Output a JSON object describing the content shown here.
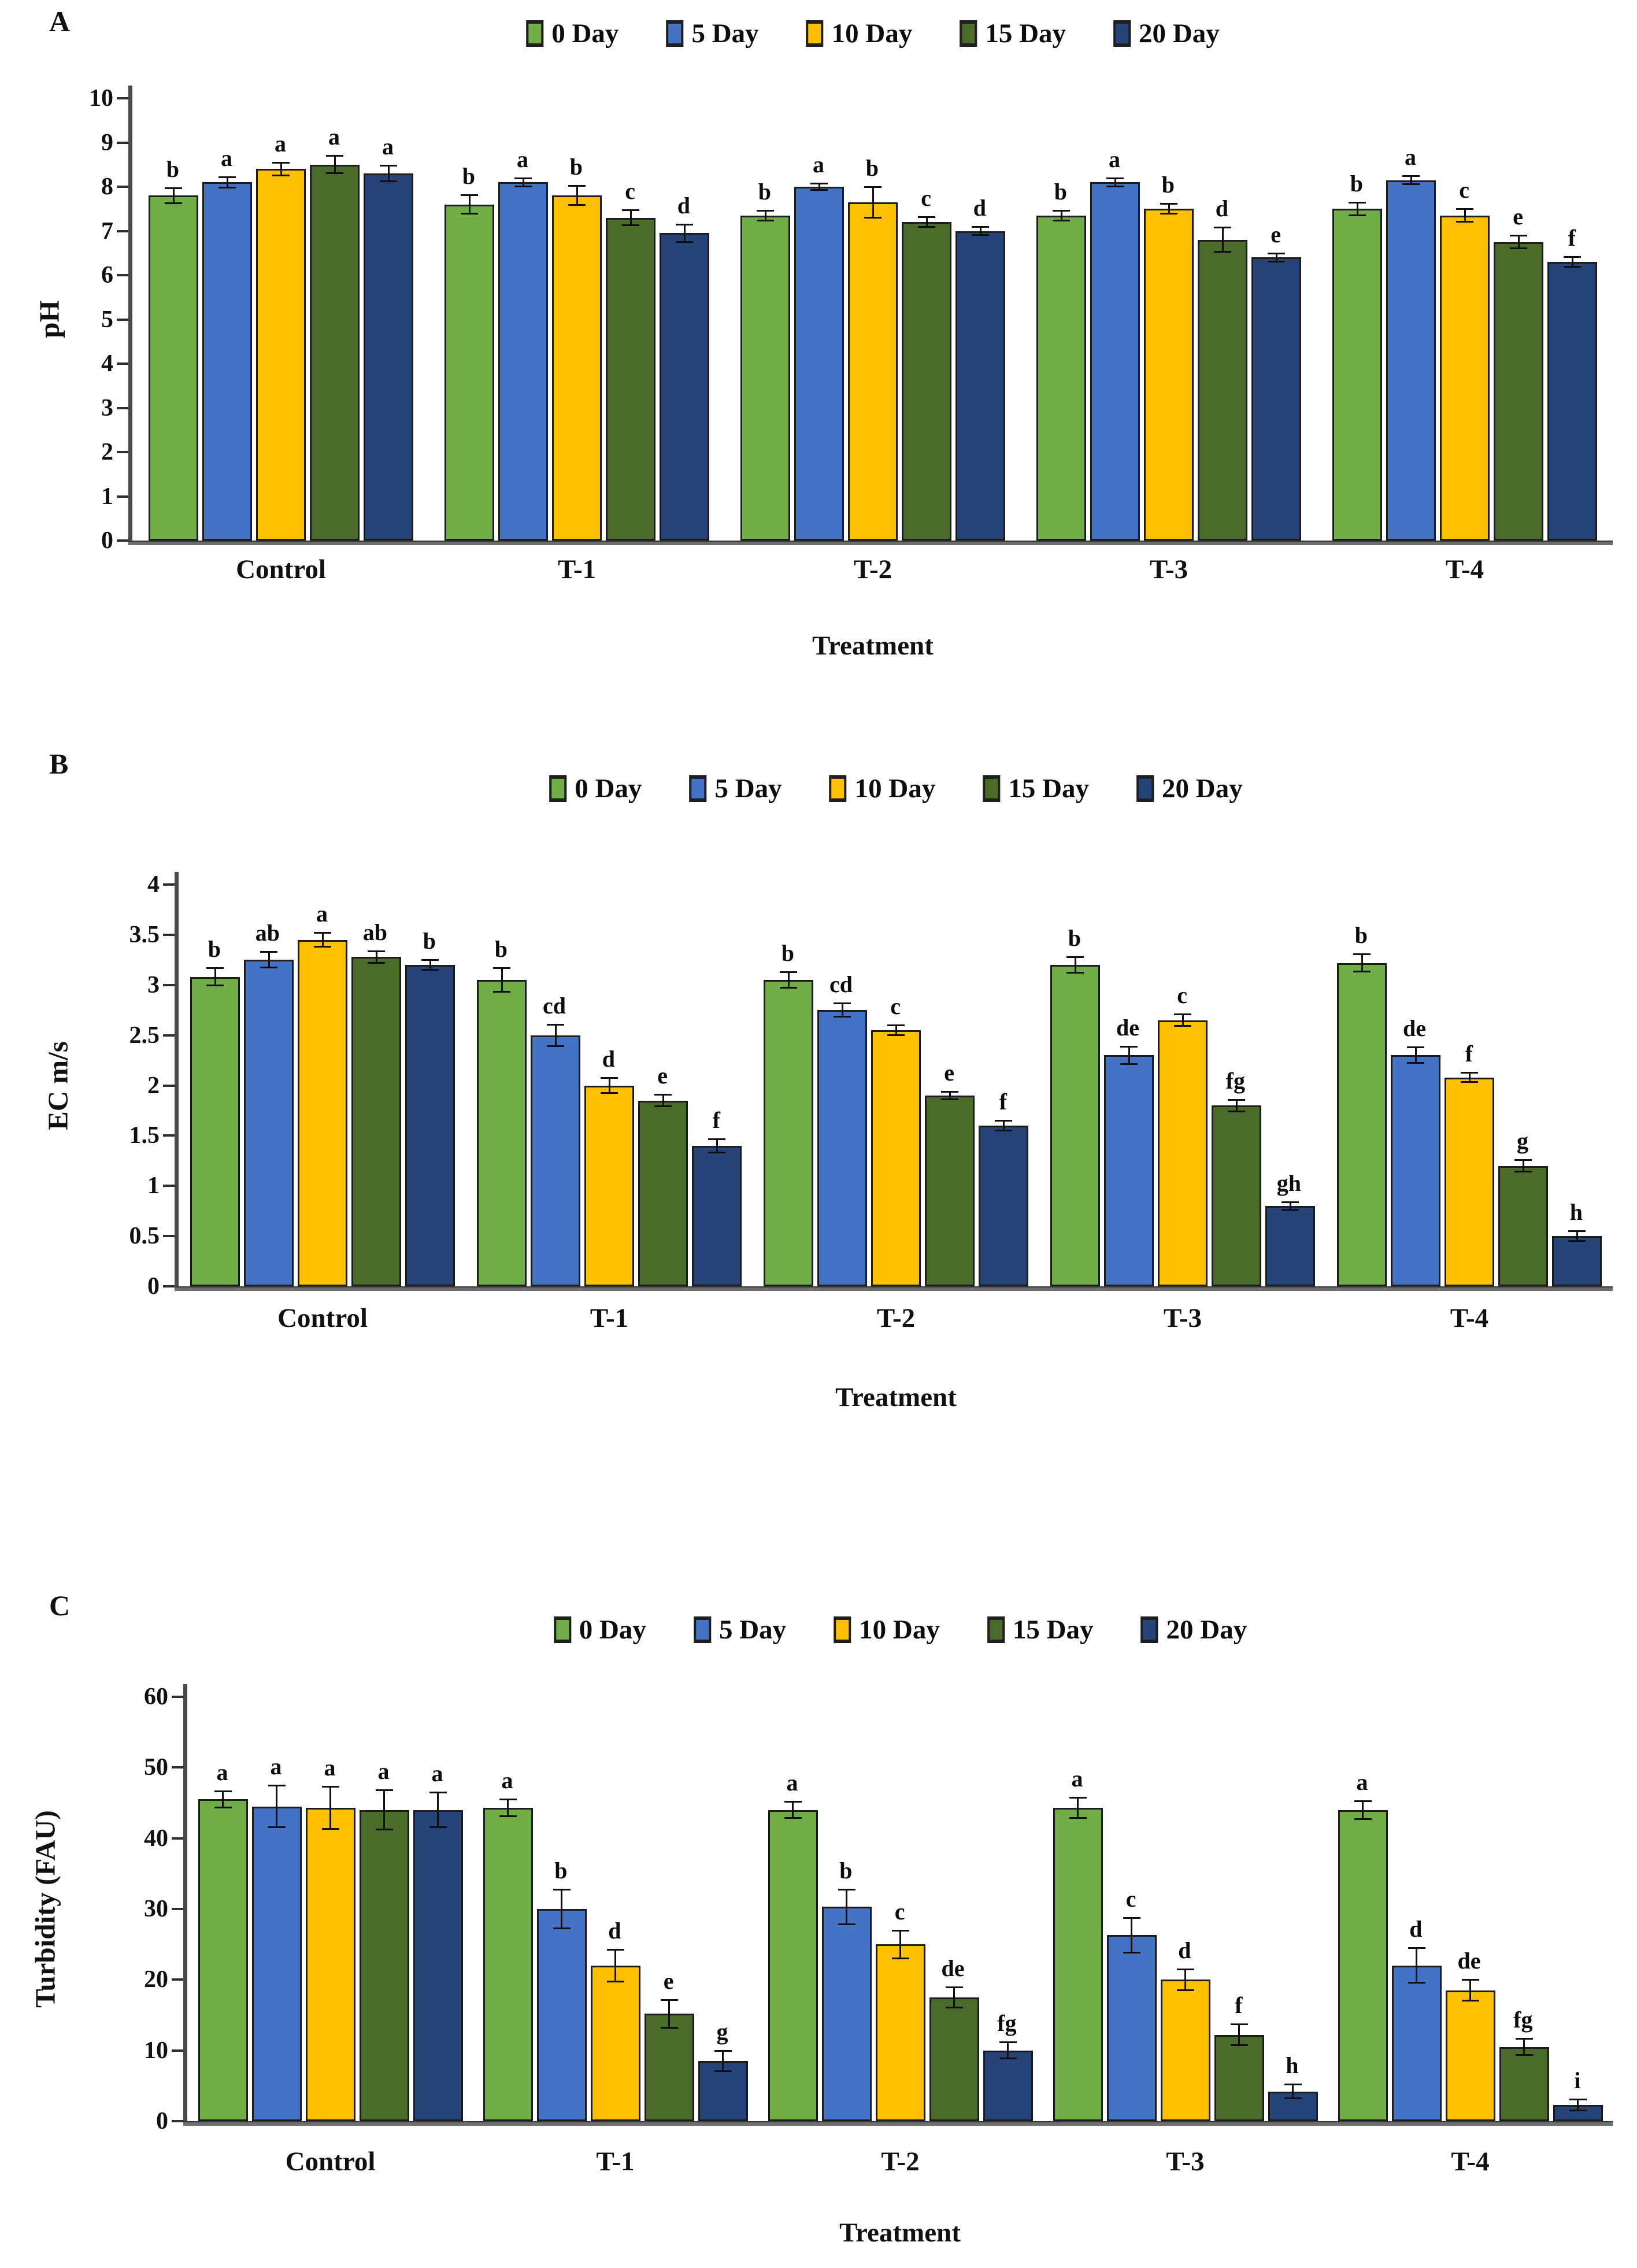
{
  "figure": {
    "x_axis_title": "Treatment",
    "categories": [
      "Control",
      "T-1",
      "T-2",
      "T-3",
      "T-4"
    ],
    "legend_labels": [
      "0 Day",
      "5 Day",
      "10 Day",
      "15 Day",
      "20 Day"
    ],
    "colors": {
      "day0": "#70AD47",
      "day5": "#4472C4",
      "day10": "#FFC000",
      "day15": "#4A6B2A",
      "day20": "#264478",
      "bar_border": "#1c1c1c",
      "axis": "#4a4a4a"
    }
  },
  "chart_data": [
    {
      "type": "bar",
      "panel": "A",
      "ylabel": "pH",
      "xlabel": "Treatment",
      "ylim": [
        0,
        10
      ],
      "yticks": [
        10,
        9,
        8,
        7,
        6,
        5,
        4,
        3,
        2,
        1,
        0
      ],
      "grid": false,
      "legend_position": "top-center",
      "categories": [
        "Control",
        "T-1",
        "T-2",
        "T-3",
        "T-4"
      ],
      "series": [
        {
          "name": "0 Day",
          "color": "#70AD47",
          "values": [
            7.8,
            7.6,
            7.35,
            7.35,
            7.5
          ],
          "errors": [
            0.18,
            0.22,
            0.12,
            0.12,
            0.15
          ],
          "letters": [
            "b",
            "b",
            "b",
            "b",
            "b"
          ]
        },
        {
          "name": "5 Day",
          "color": "#4472C4",
          "values": [
            8.1,
            8.1,
            8.0,
            8.1,
            8.15
          ],
          "errors": [
            0.12,
            0.1,
            0.08,
            0.1,
            0.1
          ],
          "letters": [
            "a",
            "a",
            "a",
            "a",
            "a"
          ]
        },
        {
          "name": "10 Day",
          "color": "#FFC000",
          "values": [
            8.4,
            7.8,
            7.65,
            7.5,
            7.35
          ],
          "errors": [
            0.15,
            0.22,
            0.35,
            0.12,
            0.15
          ],
          "letters": [
            "a",
            "b",
            "b",
            "b",
            "c"
          ]
        },
        {
          "name": "15 Day",
          "color": "#4A6B2A",
          "values": [
            8.5,
            7.3,
            7.2,
            6.8,
            6.75
          ],
          "errors": [
            0.2,
            0.18,
            0.12,
            0.28,
            0.15
          ],
          "letters": [
            "a",
            "c",
            "c",
            "d",
            "e"
          ]
        },
        {
          "name": "20 Day",
          "color": "#264478",
          "values": [
            8.3,
            6.95,
            7.0,
            6.4,
            6.3
          ],
          "errors": [
            0.18,
            0.2,
            0.1,
            0.1,
            0.12
          ],
          "letters": [
            "a",
            "d",
            "d",
            "e",
            "f"
          ]
        }
      ]
    },
    {
      "type": "bar",
      "panel": "B",
      "ylabel": "EC m/s",
      "xlabel": "Treatment",
      "ylim": [
        0,
        4
      ],
      "yticks": [
        4,
        3.5,
        3,
        2.5,
        2,
        1.5,
        1,
        0.5,
        0
      ],
      "grid": false,
      "legend_position": "top-center",
      "categories": [
        "Control",
        "T-1",
        "T-2",
        "T-3",
        "T-4"
      ],
      "series": [
        {
          "name": "0 Day",
          "color": "#70AD47",
          "values": [
            3.08,
            3.05,
            3.05,
            3.2,
            3.22
          ],
          "errors": [
            0.09,
            0.12,
            0.08,
            0.08,
            0.09
          ],
          "letters": [
            "b",
            "b",
            "b",
            "b",
            "b"
          ]
        },
        {
          "name": "5 Day",
          "color": "#4472C4",
          "values": [
            3.25,
            2.5,
            2.75,
            2.3,
            2.3
          ],
          "errors": [
            0.08,
            0.11,
            0.07,
            0.09,
            0.08
          ],
          "letters": [
            "ab",
            "cd",
            "cd",
            "de",
            "de"
          ]
        },
        {
          "name": "10 Day",
          "color": "#FFC000",
          "values": [
            3.45,
            2.0,
            2.55,
            2.65,
            2.08
          ],
          "errors": [
            0.07,
            0.08,
            0.05,
            0.06,
            0.05
          ],
          "letters": [
            "a",
            "d",
            "c",
            "c",
            "f"
          ]
        },
        {
          "name": "15 Day",
          "color": "#4A6B2A",
          "values": [
            3.28,
            1.85,
            1.9,
            1.8,
            1.2
          ],
          "errors": [
            0.06,
            0.06,
            0.04,
            0.06,
            0.06
          ],
          "letters": [
            "ab",
            "e",
            "e",
            "fg",
            "g"
          ]
        },
        {
          "name": "20 Day",
          "color": "#264478",
          "values": [
            3.2,
            1.4,
            1.6,
            0.8,
            0.5
          ],
          "errors": [
            0.05,
            0.07,
            0.05,
            0.04,
            0.05
          ],
          "letters": [
            "b",
            "f",
            "f",
            "gh",
            "h"
          ]
        }
      ]
    },
    {
      "type": "bar",
      "panel": "C",
      "ylabel": "Turbidity (FAU)",
      "xlabel": "Treatment",
      "ylim": [
        0,
        60
      ],
      "yticks": [
        60,
        50,
        40,
        30,
        20,
        10,
        0
      ],
      "grid": false,
      "legend_position": "top-center",
      "categories": [
        "Control",
        "T-1",
        "T-2",
        "T-3",
        "T-4"
      ],
      "series": [
        {
          "name": "0 Day",
          "color": "#70AD47",
          "values": [
            45.5,
            44.3,
            44,
            44.3,
            44
          ],
          "errors": [
            1.2,
            1.2,
            1.2,
            1.5,
            1.3
          ],
          "letters": [
            "a",
            "a",
            "a",
            "a",
            "a"
          ]
        },
        {
          "name": "5 Day",
          "color": "#4472C4",
          "values": [
            44.5,
            30,
            30.3,
            26.3,
            22
          ],
          "errors": [
            3.0,
            2.8,
            2.5,
            2.5,
            2.5
          ],
          "letters": [
            "a",
            "b",
            "b",
            "c",
            "d"
          ]
        },
        {
          "name": "10 Day",
          "color": "#FFC000",
          "values": [
            44.3,
            22,
            25,
            20,
            18.5
          ],
          "errors": [
            3.0,
            2.3,
            2.0,
            1.5,
            1.5
          ],
          "letters": [
            "a",
            "d",
            "c",
            "d",
            "de"
          ]
        },
        {
          "name": "15 Day",
          "color": "#4A6B2A",
          "values": [
            44,
            15.2,
            17.5,
            12.2,
            10.5
          ],
          "errors": [
            2.8,
            2.0,
            1.5,
            1.5,
            1.2
          ],
          "letters": [
            "a",
            "e",
            "de",
            "f",
            "fg"
          ]
        },
        {
          "name": "20 Day",
          "color": "#264478",
          "values": [
            44,
            8.5,
            10,
            4.2,
            2.3
          ],
          "errors": [
            2.5,
            1.5,
            1.2,
            1.0,
            0.8
          ],
          "letters": [
            "a",
            "g",
            "fg",
            "h",
            "i"
          ]
        }
      ]
    }
  ]
}
